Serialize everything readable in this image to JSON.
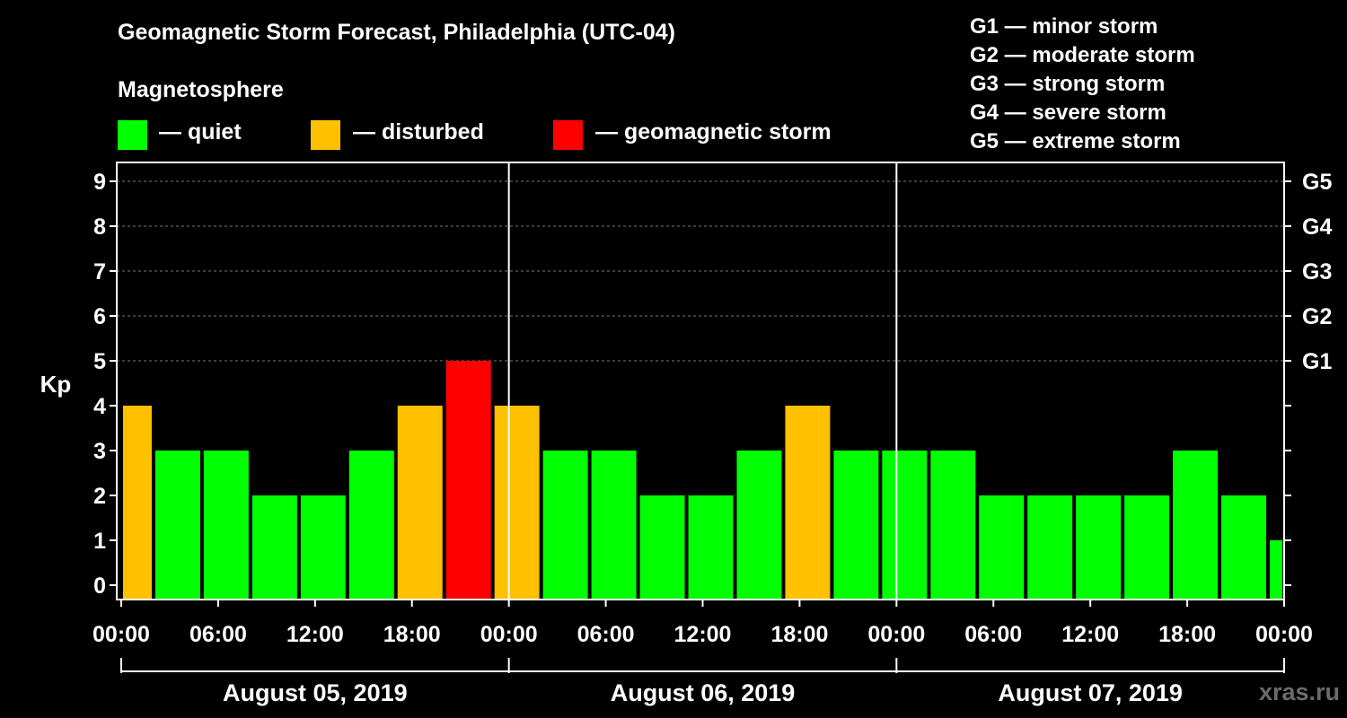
{
  "title": "Geomagnetic Storm Forecast, Philadelphia (UTC-04)",
  "legend": {
    "heading": "Magnetosphere",
    "items": [
      {
        "label": "— quiet",
        "color": "#00ff00"
      },
      {
        "label": "— disturbed",
        "color": "#ffc000"
      },
      {
        "label": "— geomagnetic storm",
        "color": "#ff0000"
      }
    ]
  },
  "g_scale": [
    {
      "level": "G1",
      "desc": "G1 — minor storm"
    },
    {
      "level": "G2",
      "desc": "G2 — moderate storm"
    },
    {
      "level": "G3",
      "desc": "G3 — strong storm"
    },
    {
      "level": "G4",
      "desc": "G4 — severe storm"
    },
    {
      "level": "G5",
      "desc": "G5 — extreme storm"
    }
  ],
  "branding": "xras.ru",
  "chart_data": {
    "type": "bar",
    "title": "Geomagnetic Storm Forecast, Philadelphia (UTC-04)",
    "ylabel": "Kp",
    "ylim": [
      0,
      9
    ],
    "yticks": [
      "0",
      "1",
      "2",
      "3",
      "4",
      "5",
      "6",
      "7",
      "8",
      "9"
    ],
    "right_ticks": [
      {
        "value": 5,
        "label": "G1"
      },
      {
        "value": 6,
        "label": "G2"
      },
      {
        "value": 7,
        "label": "G3"
      },
      {
        "value": 8,
        "label": "G4"
      },
      {
        "value": 9,
        "label": "G5"
      }
    ],
    "x_hours_range": [
      0,
      72
    ],
    "xticks": [
      {
        "hour": 0,
        "label": "00:00"
      },
      {
        "hour": 6,
        "label": "06:00"
      },
      {
        "hour": 12,
        "label": "12:00"
      },
      {
        "hour": 18,
        "label": "18:00"
      },
      {
        "hour": 24,
        "label": "00:00"
      },
      {
        "hour": 30,
        "label": "06:00"
      },
      {
        "hour": 36,
        "label": "12:00"
      },
      {
        "hour": 42,
        "label": "18:00"
      },
      {
        "hour": 48,
        "label": "00:00"
      },
      {
        "hour": 54,
        "label": "06:00"
      },
      {
        "hour": 60,
        "label": "12:00"
      },
      {
        "hour": 66,
        "label": "18:00"
      },
      {
        "hour": 72,
        "label": "00:00"
      }
    ],
    "days": [
      {
        "label": "August 05, 2019",
        "start": 0,
        "end": 24
      },
      {
        "label": "August 06, 2019",
        "start": 24,
        "end": 48
      },
      {
        "label": "August 07, 2019",
        "start": 48,
        "end": 72
      }
    ],
    "levels": {
      "quiet": "#00ff00",
      "disturbed": "#ffc000",
      "storm": "#ff0000"
    },
    "bars": [
      {
        "start": 0,
        "end": 2,
        "kp": 4,
        "level": "disturbed"
      },
      {
        "start": 2,
        "end": 5,
        "kp": 3,
        "level": "quiet"
      },
      {
        "start": 5,
        "end": 8,
        "kp": 3,
        "level": "quiet"
      },
      {
        "start": 8,
        "end": 11,
        "kp": 2,
        "level": "quiet"
      },
      {
        "start": 11,
        "end": 14,
        "kp": 2,
        "level": "quiet"
      },
      {
        "start": 14,
        "end": 17,
        "kp": 3,
        "level": "quiet"
      },
      {
        "start": 17,
        "end": 20,
        "kp": 4,
        "level": "disturbed"
      },
      {
        "start": 20,
        "end": 23,
        "kp": 5,
        "level": "storm"
      },
      {
        "start": 23,
        "end": 26,
        "kp": 4,
        "level": "disturbed"
      },
      {
        "start": 26,
        "end": 29,
        "kp": 3,
        "level": "quiet"
      },
      {
        "start": 29,
        "end": 32,
        "kp": 3,
        "level": "quiet"
      },
      {
        "start": 32,
        "end": 35,
        "kp": 2,
        "level": "quiet"
      },
      {
        "start": 35,
        "end": 38,
        "kp": 2,
        "level": "quiet"
      },
      {
        "start": 38,
        "end": 41,
        "kp": 3,
        "level": "quiet"
      },
      {
        "start": 41,
        "end": 44,
        "kp": 4,
        "level": "disturbed"
      },
      {
        "start": 44,
        "end": 47,
        "kp": 3,
        "level": "quiet"
      },
      {
        "start": 47,
        "end": 50,
        "kp": 3,
        "level": "quiet"
      },
      {
        "start": 50,
        "end": 53,
        "kp": 3,
        "level": "quiet"
      },
      {
        "start": 53,
        "end": 56,
        "kp": 2,
        "level": "quiet"
      },
      {
        "start": 56,
        "end": 59,
        "kp": 2,
        "level": "quiet"
      },
      {
        "start": 59,
        "end": 62,
        "kp": 2,
        "level": "quiet"
      },
      {
        "start": 62,
        "end": 65,
        "kp": 2,
        "level": "quiet"
      },
      {
        "start": 65,
        "end": 68,
        "kp": 3,
        "level": "quiet"
      },
      {
        "start": 68,
        "end": 71,
        "kp": 2,
        "level": "quiet"
      },
      {
        "start": 71,
        "end": 72,
        "kp": 1,
        "level": "quiet"
      }
    ]
  }
}
